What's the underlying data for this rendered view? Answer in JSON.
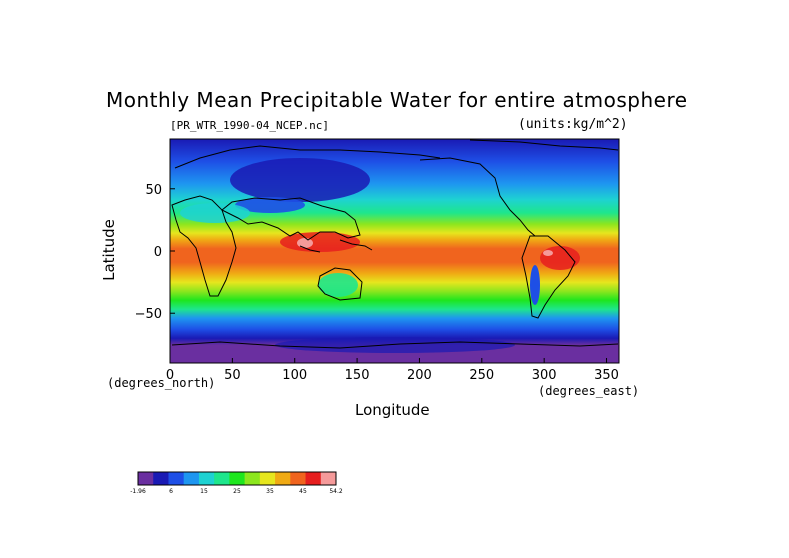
{
  "title": "Monthly Mean Precipitable Water for entire atmosphere",
  "file_label": "[PR_WTR_1990-04_NCEP.nc]",
  "units_label": "(units:kg/m^2)",
  "ylabel": "Latitude",
  "xlabel": "Longitude",
  "y_units": "(degrees_north)",
  "x_units": "(degrees_east)",
  "x_ticks": [
    "0",
    "50",
    "100",
    "150",
    "200",
    "250",
    "300",
    "350"
  ],
  "y_ticks": [
    "50",
    "0",
    "−50"
  ],
  "colorbar": {
    "labels": [
      "-1.96",
      "6",
      "15",
      "25",
      "35",
      "45",
      "54.2"
    ],
    "colors": [
      "#6a2fa0",
      "#1a1ab4",
      "#1e4fe6",
      "#1e96f0",
      "#1ed2d2",
      "#1ee68c",
      "#1ee61e",
      "#8ce61e",
      "#e6e61e",
      "#f0aa14",
      "#f0641e",
      "#e61e1e",
      "#f59a9a"
    ]
  },
  "chart_data": {
    "type": "heatmap",
    "title": "Monthly Mean Precipitable Water for entire atmosphere",
    "xlabel": "Longitude",
    "ylabel": "Latitude",
    "xlim": [
      0,
      360
    ],
    "ylim": [
      -90,
      90
    ],
    "units": "kg/m^2",
    "value_range": [
      -1.96,
      54.2
    ]
  }
}
